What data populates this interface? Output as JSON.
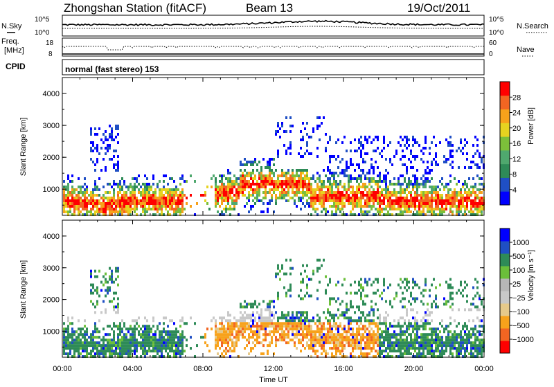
{
  "header": {
    "station": "Zhongshan Station (fitACF)",
    "beam": "Beam 13",
    "date": "19/Oct/2011"
  },
  "noise_panel": {
    "left_label": "N.Sky",
    "left_ticks": [
      "10^5",
      "10^0"
    ],
    "right_label": "N.Search",
    "right_ticks": [
      "10^5",
      "10^0"
    ]
  },
  "freq_panel": {
    "left_label_1": "Freq.",
    "left_label_2": "[MHz]",
    "left_ticks": [
      "18",
      "8"
    ],
    "right_label": "Nave",
    "right_ticks": [
      "60",
      "0"
    ]
  },
  "cpid": {
    "label": "CPID",
    "mode": "normal (fast stereo) 153"
  },
  "colors": {
    "power_scale": [
      "#0000ff",
      "#1f4fc4",
      "#2e8b57",
      "#4fa86e",
      "#7cbf3a",
      "#e6d320",
      "#f7a21b",
      "#f26522",
      "#ff0000"
    ],
    "velocity_scale": [
      "#ff0000",
      "#f26522",
      "#f7a21b",
      "#e6c98a",
      "#c8c8c8",
      "#b7b7b7",
      "#6bbf3a",
      "#2e8b57",
      "#1f4fc4",
      "#0000ff"
    ]
  },
  "chart_data": [
    {
      "type": "heatmap",
      "name": "power",
      "ylabel": "Slant Range [km]",
      "yticks": [
        "4000",
        "3000",
        "2000",
        "1000"
      ],
      "ylim": [
        180,
        4500
      ],
      "xlim": [
        0,
        24
      ],
      "xticks": [
        0,
        4,
        8,
        12,
        16,
        20,
        24
      ],
      "colorbar_label": "Power [dB]",
      "colorbar_ticks": [
        "28",
        "24",
        "20",
        "16",
        "12",
        "8",
        "4"
      ],
      "colorbar_range": [
        0,
        32
      ]
    },
    {
      "type": "heatmap",
      "name": "velocity",
      "ylabel": "Slant Range [km]",
      "yticks": [
        "4000",
        "3000",
        "2000",
        "1000"
      ],
      "ylim": [
        180,
        4500
      ],
      "xlim": [
        0,
        24
      ],
      "xticks": [
        0,
        4,
        8,
        12,
        16,
        20,
        24
      ],
      "xtick_labels": [
        "00:00",
        "04:00",
        "08:00",
        "12:00",
        "16:00",
        "20:00",
        "00:00"
      ],
      "xlabel": "Time UT",
      "colorbar_label": "Velocity [m s⁻¹]",
      "colorbar_ticks": [
        "1000",
        "500",
        "100",
        "25",
        "−25",
        "−100",
        "−500",
        "−1000"
      ]
    }
  ]
}
